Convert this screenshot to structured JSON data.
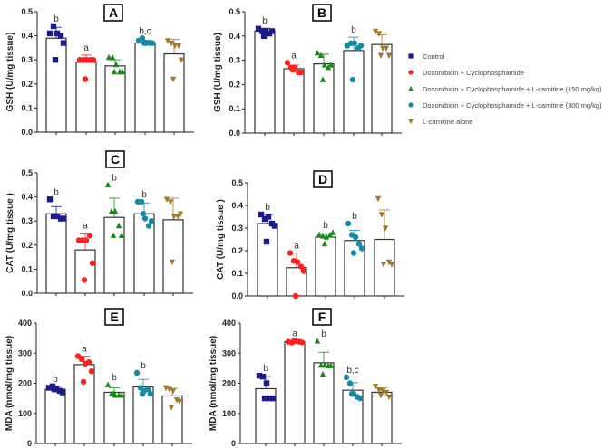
{
  "groups": [
    {
      "name": "Control",
      "color": "#1b1b8c",
      "marker": "square"
    },
    {
      "name": "Doxorubicin + Cyclophosphamide",
      "color": "#ff1f1f",
      "marker": "circle"
    },
    {
      "name": "Doxorubicin + Cyclophosphamide + L-carnitine (150 mg/kg)",
      "color": "#178a17",
      "marker": "triangle-up"
    },
    {
      "name": "Doxorubicin + Cyclophosphamide + L-carnitine (300 mg/kg)",
      "color": "#168aa3",
      "marker": "circle"
    },
    {
      "name": "L-carnitine alone",
      "color": "#a07a2c",
      "marker": "triangle-down"
    }
  ],
  "chart_data": [
    {
      "type": "bar",
      "panel": "A",
      "ylabel": "GSH (U/mg tissue)",
      "ylim": [
        0,
        0.5
      ],
      "yticks": [
        "0.0",
        "0.1",
        "0.2",
        "0.3",
        "0.4",
        "0.5"
      ],
      "means": [
        0.39,
        0.29,
        0.275,
        0.37,
        0.325
      ],
      "sd": [
        0.045,
        0.03,
        0.025,
        0.012,
        0.06
      ],
      "points": [
        [
          0.41,
          0.44,
          0.41,
          0.4,
          0.37,
          0.3
        ],
        [
          0.3,
          0.3,
          0.3,
          0.3,
          0.3,
          0.22
        ],
        [
          0.31,
          0.31,
          0.28,
          0.25,
          0.25,
          0.25
        ],
        [
          0.38,
          0.39,
          0.37,
          0.37,
          0.37,
          0.37
        ],
        [
          0.38,
          0.37,
          0.36,
          0.36,
          0.3,
          0.22
        ]
      ],
      "letters": [
        "b",
        "a",
        "",
        "b,c",
        ""
      ]
    },
    {
      "type": "bar",
      "panel": "B",
      "ylabel": "GSH (U/mg tissue)",
      "ylim": [
        0,
        0.5
      ],
      "yticks": [
        "0.0",
        "0.1",
        "0.2",
        "0.3",
        "0.4",
        "0.5"
      ],
      "means": [
        0.42,
        0.265,
        0.285,
        0.34,
        0.365
      ],
      "sd": [
        0.012,
        0.015,
        0.04,
        0.055,
        0.04
      ],
      "points": [
        [
          0.43,
          0.42,
          0.42,
          0.41,
          0.42,
          0.4
        ],
        [
          0.29,
          0.27,
          0.27,
          0.25,
          0.25,
          0.26
        ],
        [
          0.33,
          0.32,
          0.28,
          0.27,
          0.28,
          0.22
        ],
        [
          0.36,
          0.37,
          0.37,
          0.35,
          0.36,
          0.22
        ],
        [
          0.42,
          0.41,
          0.35,
          0.35,
          0.32,
          0.32
        ]
      ],
      "letters": [
        "b",
        "a",
        "",
        "b",
        ""
      ]
    },
    {
      "type": "bar",
      "panel": "C",
      "ylabel": "CAT (U/mg tissue )",
      "ylim": [
        0,
        0.5
      ],
      "yticks": [
        "0.0",
        "0.1",
        "0.2",
        "0.3",
        "0.4",
        "0.5"
      ],
      "means": [
        0.33,
        0.18,
        0.315,
        0.33,
        0.305
      ],
      "sd": [
        0.03,
        0.07,
        0.08,
        0.045,
        0.09
      ],
      "points": [
        [
          0.39,
          0.32,
          0.32,
          0.31,
          0.31,
          0.32
        ],
        [
          0.22,
          0.22,
          0.22,
          0.24,
          0.125,
          0.055
        ],
        [
          0.45,
          0.34,
          0.34,
          0.28,
          0.24,
          0.24
        ],
        [
          0.38,
          0.38,
          0.31,
          0.28,
          0.3,
          0.33
        ],
        [
          0.39,
          0.38,
          0.32,
          0.32,
          0.33,
          0.13
        ]
      ],
      "letters": [
        "b",
        "a",
        "b",
        "b",
        ""
      ]
    },
    {
      "type": "bar",
      "panel": "D",
      "ylabel": "CAT (U/mg tissue )",
      "ylim": [
        0,
        0.5
      ],
      "yticks": [
        "0.0",
        "0.1",
        "0.2",
        "0.3",
        "0.4",
        "0.5"
      ],
      "means": [
        0.32,
        0.125,
        0.26,
        0.245,
        0.25
      ],
      "sd": [
        0.04,
        0.065,
        0.015,
        0.045,
        0.13
      ],
      "points": [
        [
          0.36,
          0.34,
          0.35,
          0.32,
          0.31,
          0.24
        ],
        [
          0.19,
          0.155,
          0.15,
          0.13,
          0.11,
          0.0
        ],
        [
          0.27,
          0.265,
          0.26,
          0.27,
          0.28,
          0.23
        ],
        [
          0.32,
          0.27,
          0.26,
          0.23,
          0.21,
          0.19
        ],
        [
          0.43,
          0.36,
          0.3,
          0.15,
          0.14,
          0.14
        ]
      ],
      "letters": [
        "b",
        "a",
        "b",
        "b",
        ""
      ]
    },
    {
      "type": "bar",
      "panel": "E",
      "ylabel": "MDA (nmol/mg tissue)",
      "ylim": [
        0,
        400
      ],
      "yticks": [
        "0",
        "100",
        "200",
        "300",
        "400"
      ],
      "means": [
        180,
        262,
        170,
        188,
        158
      ],
      "sd": [
        10,
        28,
        15,
        25,
        25
      ],
      "points": [
        [
          185,
          190,
          180,
          175,
          170,
          180
        ],
        [
          290,
          280,
          265,
          270,
          240,
          205
        ],
        [
          195,
          165,
          160,
          160,
          160,
          165
        ],
        [
          235,
          185,
          175,
          180,
          165,
          165
        ],
        [
          185,
          180,
          175,
          145,
          140,
          120
        ]
      ],
      "letters": [
        "b",
        "a",
        "b",
        "b",
        ""
      ]
    },
    {
      "type": "bar",
      "panel": "F",
      "ylabel": "MDA (nmol/mg tissue)",
      "ylim": [
        0,
        400
      ],
      "yticks": [
        "0",
        "100",
        "200",
        "300",
        "400"
      ],
      "means": [
        182,
        338,
        268,
        177,
        170
      ],
      "sd": [
        40,
        3,
        35,
        25,
        15
      ],
      "points": [
        [
          225,
          222,
          200,
          150,
          150,
          150
        ],
        [
          338,
          335,
          340,
          338,
          336,
          340
        ],
        [
          340,
          260,
          260,
          258,
          258,
          230
        ],
        [
          220,
          200,
          165,
          155,
          150,
          165
        ],
        [
          190,
          178,
          175,
          170,
          155,
          160
        ]
      ],
      "letters": [
        "b",
        "a",
        "b",
        "b,c",
        ""
      ]
    }
  ]
}
